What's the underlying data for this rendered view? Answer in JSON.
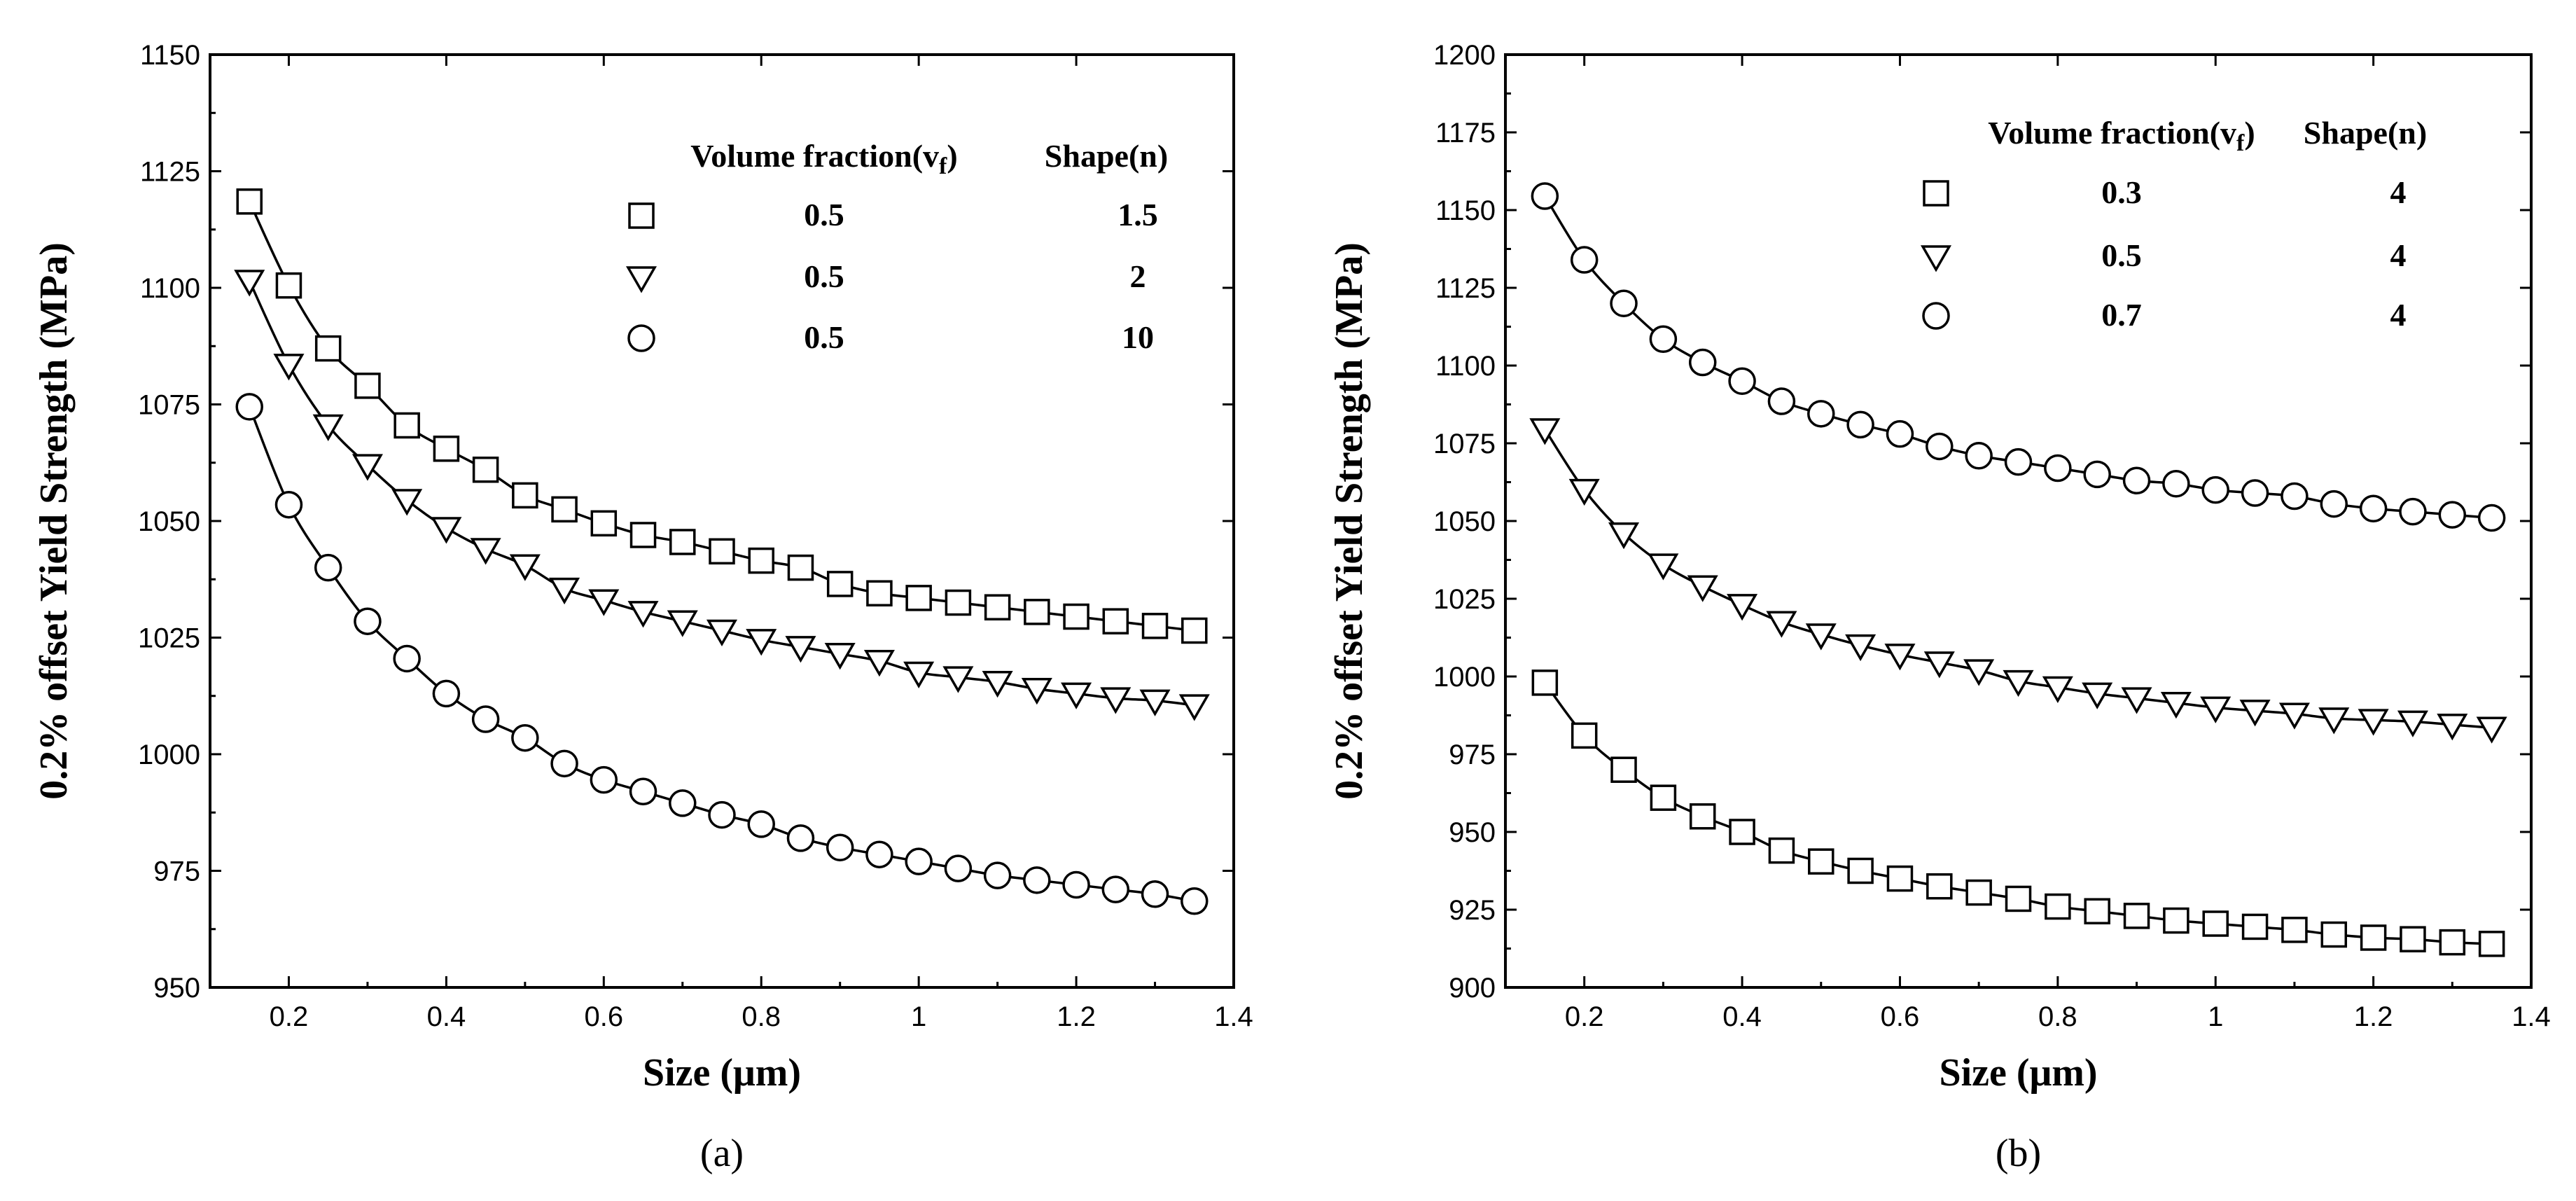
{
  "chart_data": [
    {
      "type": "line",
      "panel_label": "(a)",
      "xlabel": "Size (μm)",
      "ylabel": "0.2% offset Yield Strength (MPa)",
      "xlim": [
        0.1,
        1.4
      ],
      "ylim": [
        950,
        1150
      ],
      "xticks": [
        0.2,
        0.4,
        0.6,
        0.8,
        1,
        1.2,
        1.4
      ],
      "yticks": [
        950,
        975,
        1000,
        1025,
        1050,
        1075,
        1100,
        1125,
        1150
      ],
      "xtick_labels": [
        "0.2",
        "0.4",
        "0.6",
        "0.8",
        "1",
        "1.2",
        "1.4"
      ],
      "ytick_labels": [
        "950",
        "975",
        "1000",
        "1025",
        "1050",
        "1075",
        "1100",
        "1125",
        "1150"
      ],
      "legend": {
        "header_vf": "Volume fraction(v",
        "header_vf_sub": "f",
        "header_vf_close": ")",
        "header_shape": "Shape(n)",
        "entries": [
          {
            "marker": "square",
            "vf": "0.5",
            "shape": "1.5"
          },
          {
            "marker": "triangle-down",
            "vf": "0.5",
            "shape": "2"
          },
          {
            "marker": "circle",
            "vf": "0.5",
            "shape": "10"
          }
        ]
      },
      "x": [
        0.15,
        0.2,
        0.25,
        0.3,
        0.35,
        0.4,
        0.45,
        0.5,
        0.55,
        0.6,
        0.65,
        0.7,
        0.75,
        0.8,
        0.85,
        0.9,
        0.95,
        1.0,
        1.05,
        1.1,
        1.15,
        1.2,
        1.25,
        1.3,
        1.35
      ],
      "series": [
        {
          "name": "vf=0.5, n=1.5",
          "marker": "square",
          "values": [
            1118.5,
            1100.5,
            1087.0,
            1079.0,
            1070.5,
            1065.5,
            1061.0,
            1055.5,
            1052.5,
            1049.5,
            1047.0,
            1045.5,
            1043.5,
            1041.5,
            1040.0,
            1036.5,
            1034.5,
            1033.5,
            1032.5,
            1031.5,
            1030.5,
            1029.5,
            1028.5,
            1027.5,
            1026.5
          ]
        },
        {
          "name": "vf=0.5, n=2",
          "marker": "triangle-down",
          "values": [
            1101.5,
            1083.5,
            1070.5,
            1062.0,
            1054.5,
            1048.5,
            1044.0,
            1040.5,
            1035.5,
            1033.0,
            1030.5,
            1028.5,
            1026.5,
            1024.5,
            1023.0,
            1021.5,
            1020.0,
            1017.5,
            1016.5,
            1015.5,
            1014.0,
            1013.0,
            1012.0,
            1011.5,
            1010.5
          ]
        },
        {
          "name": "vf=0.5, n=10",
          "marker": "circle",
          "values": [
            1074.5,
            1053.5,
            1040.0,
            1028.5,
            1020.5,
            1013.0,
            1007.5,
            1003.5,
            998.0,
            994.5,
            992.0,
            989.5,
            987.0,
            985.0,
            982.0,
            980.0,
            978.5,
            977.0,
            975.5,
            974.0,
            973.0,
            972.0,
            971.0,
            970.0,
            968.5
          ]
        }
      ]
    },
    {
      "type": "line",
      "panel_label": "(b)",
      "xlabel": "Size (μm)",
      "ylabel": "0.2% offset Yield Strength (MPa)",
      "xlim": [
        0.1,
        1.4
      ],
      "ylim": [
        900,
        1200
      ],
      "xticks": [
        0.2,
        0.4,
        0.6,
        0.8,
        1,
        1.2,
        1.4
      ],
      "yticks": [
        900,
        925,
        950,
        975,
        1000,
        1025,
        1050,
        1075,
        1100,
        1125,
        1150,
        1175,
        1200
      ],
      "xtick_labels": [
        "0.2",
        "0.4",
        "0.6",
        "0.8",
        "1",
        "1.2",
        "1.4"
      ],
      "ytick_labels": [
        "900",
        "925",
        "950",
        "975",
        "1000",
        "1025",
        "1050",
        "1075",
        "1100",
        "1125",
        "1150",
        "1175",
        "1200"
      ],
      "legend": {
        "header_vf": "Volume fraction(v",
        "header_vf_sub": "f",
        "header_vf_close": ")",
        "header_shape": "Shape(n)",
        "entries": [
          {
            "marker": "square",
            "vf": "0.3",
            "shape": "4"
          },
          {
            "marker": "triangle-down",
            "vf": "0.5",
            "shape": "4"
          },
          {
            "marker": "circle",
            "vf": "0.7",
            "shape": "4"
          }
        ]
      },
      "x": [
        0.15,
        0.2,
        0.25,
        0.3,
        0.35,
        0.4,
        0.45,
        0.5,
        0.55,
        0.6,
        0.65,
        0.7,
        0.75,
        0.8,
        0.85,
        0.9,
        0.95,
        1.0,
        1.05,
        1.1,
        1.15,
        1.2,
        1.25,
        1.3,
        1.35
      ],
      "series": [
        {
          "name": "vf=0.3, n=4",
          "marker": "square",
          "values": [
            998.0,
            981.0,
            970.0,
            961.0,
            955.0,
            950.0,
            944.0,
            940.5,
            937.5,
            935.0,
            932.5,
            930.5,
            928.5,
            926.0,
            924.5,
            923.0,
            921.5,
            920.5,
            919.5,
            918.5,
            917.0,
            916.0,
            915.5,
            914.5,
            914.0
          ]
        },
        {
          "name": "vf=0.5, n=4",
          "marker": "triangle-down",
          "values": [
            1079.5,
            1060.0,
            1046.0,
            1036.0,
            1029.0,
            1023.0,
            1017.5,
            1013.5,
            1010.0,
            1007.0,
            1004.5,
            1002.0,
            998.5,
            996.5,
            994.5,
            993.0,
            991.5,
            990.0,
            989.0,
            988.0,
            986.5,
            986.0,
            985.5,
            984.5,
            983.5
          ]
        },
        {
          "name": "vf=0.7, n=4",
          "marker": "circle",
          "values": [
            1154.5,
            1134.0,
            1120.0,
            1108.5,
            1101.0,
            1095.0,
            1088.5,
            1084.5,
            1081.0,
            1078.0,
            1074.0,
            1071.0,
            1069.0,
            1067.0,
            1065.0,
            1063.0,
            1062.0,
            1060.0,
            1059.0,
            1058.0,
            1055.5,
            1054.0,
            1053.0,
            1052.0,
            1051.0
          ]
        }
      ]
    }
  ]
}
